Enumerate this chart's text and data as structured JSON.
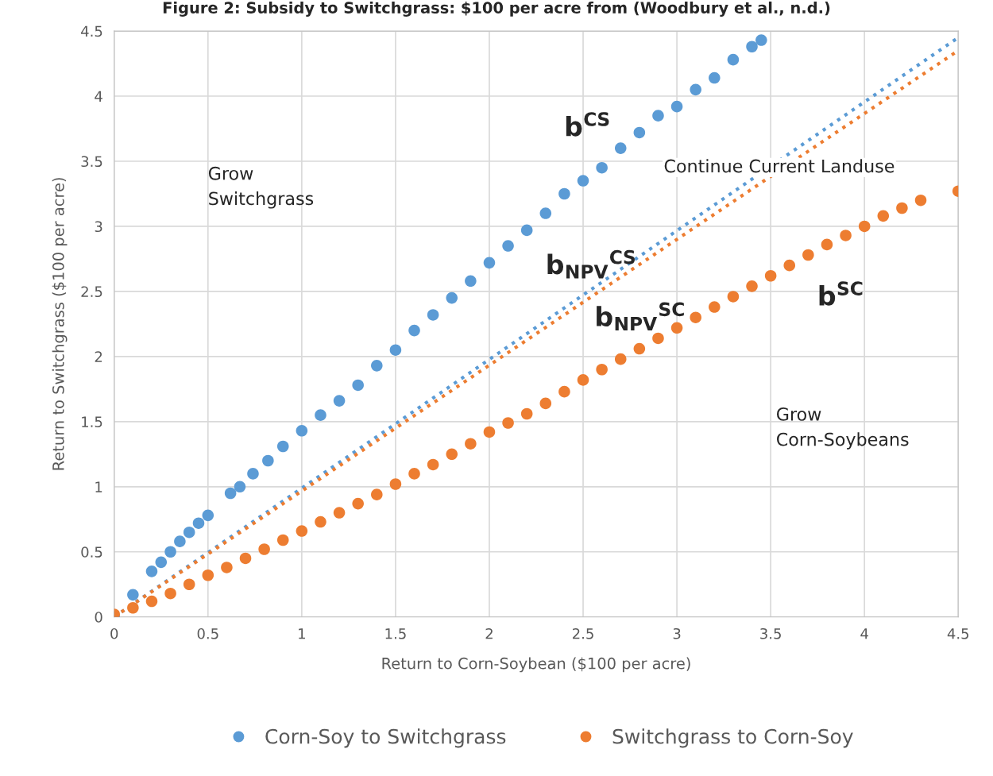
{
  "chart_data": {
    "type": "scatter",
    "title": "Figure 2: Subsidy to Switchgrass: $100 per acre from (Woodbury et al., n.d.)",
    "xlabel": "Return to Corn-Soybean ($100 per acre)",
    "ylabel": "Return to Switchgrass ($100 per acre)",
    "xlim": [
      0,
      4.5
    ],
    "ylim": [
      0,
      4.5
    ],
    "xticks": [
      0,
      0.5,
      1,
      1.5,
      2,
      2.5,
      3,
      3.5,
      4,
      4.5
    ],
    "yticks": [
      0,
      0.5,
      1,
      1.5,
      2,
      2.5,
      3,
      3.5,
      4,
      4.5
    ],
    "grid": true,
    "legend": "bottom",
    "marker": "circle",
    "series": [
      {
        "name": "Corn-Soy to Switchgrass",
        "color": "#5b9bd5",
        "x": [
          0,
          0.1,
          0.2,
          0.25,
          0.3,
          0.35,
          0.4,
          0.45,
          0.5,
          0.62,
          0.67,
          0.74,
          0.82,
          0.9,
          1.0,
          1.1,
          1.2,
          1.3,
          1.4,
          1.5,
          1.6,
          1.7,
          1.8,
          1.9,
          2.0,
          2.1,
          2.2,
          2.3,
          2.4,
          2.5,
          2.6,
          2.7,
          2.8,
          2.9,
          3.0,
          3.1,
          3.2,
          3.3,
          3.4,
          3.45
        ],
        "values": [
          0,
          0.17,
          0.35,
          0.42,
          0.5,
          0.58,
          0.65,
          0.72,
          0.78,
          0.95,
          1.0,
          1.1,
          1.2,
          1.31,
          1.43,
          1.55,
          1.66,
          1.78,
          1.93,
          2.05,
          2.2,
          2.32,
          2.45,
          2.58,
          2.72,
          2.85,
          2.97,
          3.1,
          3.25,
          3.35,
          3.45,
          3.6,
          3.72,
          3.85,
          3.92,
          4.05,
          4.14,
          4.28,
          4.38,
          4.43
        ]
      },
      {
        "name": "Switchgrass to Corn-Soy",
        "color": "#ed7d31",
        "x": [
          0,
          0.1,
          0.2,
          0.3,
          0.4,
          0.5,
          0.6,
          0.7,
          0.8,
          0.9,
          1.0,
          1.1,
          1.2,
          1.3,
          1.4,
          1.5,
          1.6,
          1.7,
          1.8,
          1.9,
          2.0,
          2.1,
          2.2,
          2.3,
          2.4,
          2.5,
          2.6,
          2.7,
          2.8,
          2.9,
          3.0,
          3.1,
          3.2,
          3.3,
          3.4,
          3.5,
          3.6,
          3.7,
          3.8,
          3.9,
          4.0,
          4.1,
          4.2,
          4.3,
          4.5
        ],
        "values": [
          0.02,
          0.07,
          0.12,
          0.18,
          0.25,
          0.32,
          0.38,
          0.45,
          0.52,
          0.59,
          0.66,
          0.73,
          0.8,
          0.87,
          0.94,
          1.02,
          1.1,
          1.17,
          1.25,
          1.33,
          1.42,
          1.49,
          1.56,
          1.64,
          1.73,
          1.82,
          1.9,
          1.98,
          2.06,
          2.14,
          2.22,
          2.3,
          2.38,
          2.46,
          2.54,
          2.62,
          2.7,
          2.78,
          2.86,
          2.93,
          3.0,
          3.08,
          3.14,
          3.2,
          3.27
        ]
      },
      {
        "type": "line",
        "line_style": "dotted",
        "marker": "none",
        "color": "#5b9bd5",
        "x": [
          0,
          4.5
        ],
        "values": [
          0,
          4.45
        ]
      },
      {
        "type": "line",
        "line_style": "dotted",
        "marker": "none",
        "color": "#ed7d31",
        "x": [
          0,
          4.5
        ],
        "values": [
          0,
          4.35
        ]
      }
    ],
    "annotations": [
      "Grow\nSwitchgrass",
      "b$^{CS}$",
      "Continue Current Landuse",
      "b$_{NPV}$$^{CS}$",
      "b$_{NPV}$$^{SC}$",
      "b$^{SC}$",
      "Grow\nCorn-Soybeans"
    ]
  }
}
